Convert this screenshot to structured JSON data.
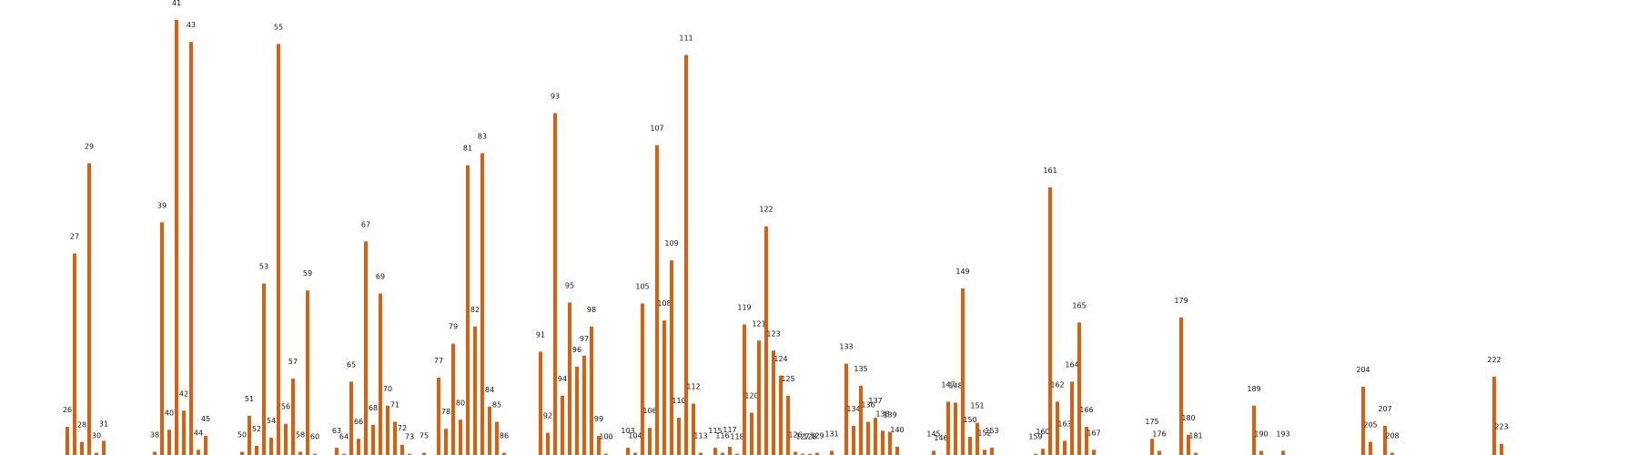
{
  "chart_data": {
    "type": "bar",
    "bar_color": "#d95f0e",
    "background": "#ffffff",
    "grid": false,
    "axes_visible": false,
    "title": "",
    "xlabel": "",
    "ylabel": "",
    "ylim": [
      0,
      43.5
    ],
    "xlim": [
      25,
      224
    ],
    "points": [
      {
        "x": 26,
        "y": 3.0,
        "label": "26"
      },
      {
        "x": 27,
        "y": 20.3,
        "label": "27"
      },
      {
        "x": 28,
        "y": 1.5,
        "label": "28"
      },
      {
        "x": 29,
        "y": 29.3,
        "label": "29"
      },
      {
        "x": 30,
        "y": 0.4,
        "label": "30"
      },
      {
        "x": 31,
        "y": 1.6,
        "label": "31"
      },
      {
        "x": 38,
        "y": 0.5,
        "label": "38"
      },
      {
        "x": 39,
        "y": 23.4,
        "label": "39"
      },
      {
        "x": 40,
        "y": 2.7,
        "label": "40"
      },
      {
        "x": 41,
        "y": 43.6,
        "label": "41"
      },
      {
        "x": 42,
        "y": 4.6,
        "label": "42"
      },
      {
        "x": 43,
        "y": 41.4,
        "label": "43"
      },
      {
        "x": 44,
        "y": 0.7,
        "label": "44"
      },
      {
        "x": 45,
        "y": 2.1,
        "label": "45"
      },
      {
        "x": 50,
        "y": 0.5,
        "label": "50"
      },
      {
        "x": 51,
        "y": 4.1,
        "label": "51"
      },
      {
        "x": 52,
        "y": 1.1,
        "label": "52"
      },
      {
        "x": 53,
        "y": 17.3,
        "label": "53"
      },
      {
        "x": 54,
        "y": 1.9,
        "label": "54"
      },
      {
        "x": 55,
        "y": 41.2,
        "label": "55"
      },
      {
        "x": 56,
        "y": 3.3,
        "label": "56"
      },
      {
        "x": 57,
        "y": 7.8,
        "label": "57"
      },
      {
        "x": 58,
        "y": 0.5,
        "label": "58"
      },
      {
        "x": 59,
        "y": 16.6,
        "label": "59"
      },
      {
        "x": 60,
        "y": 0.3,
        "label": "60"
      },
      {
        "x": 63,
        "y": 0.9,
        "label": "63"
      },
      {
        "x": 64,
        "y": 0.3,
        "label": "64"
      },
      {
        "x": 65,
        "y": 7.5,
        "label": "65"
      },
      {
        "x": 66,
        "y": 1.8,
        "label": "66"
      },
      {
        "x": 67,
        "y": 21.5,
        "label": "67"
      },
      {
        "x": 68,
        "y": 3.2,
        "label": "68"
      },
      {
        "x": 69,
        "y": 16.3,
        "label": "69"
      },
      {
        "x": 70,
        "y": 5.1,
        "label": "70"
      },
      {
        "x": 71,
        "y": 3.5,
        "label": "71"
      },
      {
        "x": 72,
        "y": 1.2,
        "label": "72"
      },
      {
        "x": 73,
        "y": 0.3,
        "label": "73"
      },
      {
        "x": 75,
        "y": 0.4,
        "label": "75"
      },
      {
        "x": 77,
        "y": 7.9,
        "label": "77"
      },
      {
        "x": 78,
        "y": 2.8,
        "label": "78"
      },
      {
        "x": 79,
        "y": 11.3,
        "label": "79"
      },
      {
        "x": 80,
        "y": 3.7,
        "label": "80"
      },
      {
        "x": 81,
        "y": 29.1,
        "label": "81"
      },
      {
        "x": 82,
        "y": 13.0,
        "label": "82"
      },
      {
        "x": 83,
        "y": 30.3,
        "label": "83"
      },
      {
        "x": 84,
        "y": 5.0,
        "label": "84"
      },
      {
        "x": 85,
        "y": 3.5,
        "label": "85"
      },
      {
        "x": 86,
        "y": 0.4,
        "label": "86"
      },
      {
        "x": 91,
        "y": 10.5,
        "label": "91"
      },
      {
        "x": 92,
        "y": 2.4,
        "label": "92"
      },
      {
        "x": 93,
        "y": 34.3,
        "label": "93"
      },
      {
        "x": 94,
        "y": 6.1,
        "label": "94"
      },
      {
        "x": 95,
        "y": 15.4,
        "label": "95"
      },
      {
        "x": 96,
        "y": 9.0,
        "label": "96"
      },
      {
        "x": 97,
        "y": 10.1,
        "label": "97"
      },
      {
        "x": 98,
        "y": 13.0,
        "label": "98"
      },
      {
        "x": 99,
        "y": 2.1,
        "label": "99"
      },
      {
        "x": 100,
        "y": 0.3,
        "label": "100"
      },
      {
        "x": 103,
        "y": 0.9,
        "label": "103"
      },
      {
        "x": 104,
        "y": 0.4,
        "label": "104"
      },
      {
        "x": 105,
        "y": 15.3,
        "label": "105"
      },
      {
        "x": 106,
        "y": 2.9,
        "label": "106"
      },
      {
        "x": 107,
        "y": 31.1,
        "label": "107"
      },
      {
        "x": 108,
        "y": 13.6,
        "label": "108"
      },
      {
        "x": 109,
        "y": 19.6,
        "label": "109"
      },
      {
        "x": 110,
        "y": 3.9,
        "label": "110"
      },
      {
        "x": 111,
        "y": 40.1,
        "label": "111"
      },
      {
        "x": 112,
        "y": 5.3,
        "label": "112"
      },
      {
        "x": 113,
        "y": 0.4,
        "label": "113"
      },
      {
        "x": 115,
        "y": 0.9,
        "label": "115"
      },
      {
        "x": 116,
        "y": 0.4,
        "label": "116"
      },
      {
        "x": 117,
        "y": 1.0,
        "label": "117"
      },
      {
        "x": 118,
        "y": 0.3,
        "label": "118"
      },
      {
        "x": 119,
        "y": 13.2,
        "label": "119"
      },
      {
        "x": 120,
        "y": 4.4,
        "label": "120"
      },
      {
        "x": 121,
        "y": 11.6,
        "label": "121"
      },
      {
        "x": 122,
        "y": 23.0,
        "label": "122"
      },
      {
        "x": 123,
        "y": 10.6,
        "label": "123"
      },
      {
        "x": 124,
        "y": 8.1,
        "label": "124"
      },
      {
        "x": 125,
        "y": 6.1,
        "label": "125"
      },
      {
        "x": 126,
        "y": 0.5,
        "label": "126"
      },
      {
        "x": 127,
        "y": 0.3,
        "label": "127"
      },
      {
        "x": 128,
        "y": 0.3,
        "label": "128"
      },
      {
        "x": 129,
        "y": 0.4,
        "label": "129"
      },
      {
        "x": 131,
        "y": 0.6,
        "label": "131"
      },
      {
        "x": 133,
        "y": 9.3,
        "label": "133"
      },
      {
        "x": 134,
        "y": 3.1,
        "label": "134"
      },
      {
        "x": 135,
        "y": 7.1,
        "label": "135"
      },
      {
        "x": 136,
        "y": 3.5,
        "label": "136"
      },
      {
        "x": 137,
        "y": 3.9,
        "label": "137"
      },
      {
        "x": 138,
        "y": 2.6,
        "label": "138"
      },
      {
        "x": 139,
        "y": 2.5,
        "label": "139"
      },
      {
        "x": 140,
        "y": 1.0,
        "label": "140"
      },
      {
        "x": 145,
        "y": 0.6,
        "label": "145"
      },
      {
        "x": 146,
        "y": 0.2,
        "label": "146"
      },
      {
        "x": 147,
        "y": 5.5,
        "label": "147"
      },
      {
        "x": 148,
        "y": 5.4,
        "label": "148"
      },
      {
        "x": 149,
        "y": 16.8,
        "label": "149"
      },
      {
        "x": 150,
        "y": 2.0,
        "label": "150"
      },
      {
        "x": 151,
        "y": 3.4,
        "label": "151"
      },
      {
        "x": 152,
        "y": 0.7,
        "label": "152"
      },
      {
        "x": 153,
        "y": 0.9,
        "label": "153"
      },
      {
        "x": 159,
        "y": 0.3,
        "label": "159"
      },
      {
        "x": 160,
        "y": 0.8,
        "label": "160"
      },
      {
        "x": 161,
        "y": 26.9,
        "label": "161"
      },
      {
        "x": 162,
        "y": 5.5,
        "label": "162"
      },
      {
        "x": 163,
        "y": 1.6,
        "label": "163"
      },
      {
        "x": 164,
        "y": 7.5,
        "label": "164"
      },
      {
        "x": 165,
        "y": 13.4,
        "label": "165"
      },
      {
        "x": 166,
        "y": 3.0,
        "label": "166"
      },
      {
        "x": 167,
        "y": 0.7,
        "label": "167"
      },
      {
        "x": 175,
        "y": 1.8,
        "label": "175"
      },
      {
        "x": 176,
        "y": 0.6,
        "label": "176"
      },
      {
        "x": 179,
        "y": 13.9,
        "label": "179"
      },
      {
        "x": 180,
        "y": 2.2,
        "label": "180"
      },
      {
        "x": 181,
        "y": 0.4,
        "label": "181"
      },
      {
        "x": 189,
        "y": 5.1,
        "label": "189"
      },
      {
        "x": 190,
        "y": 0.6,
        "label": "190"
      },
      {
        "x": 193,
        "y": 0.6,
        "label": "193"
      },
      {
        "x": 204,
        "y": 7.0,
        "label": "204"
      },
      {
        "x": 205,
        "y": 1.5,
        "label": "205"
      },
      {
        "x": 207,
        "y": 3.1,
        "label": "207"
      },
      {
        "x": 208,
        "y": 0.4,
        "label": "208"
      },
      {
        "x": 222,
        "y": 8.0,
        "label": "222"
      },
      {
        "x": 223,
        "y": 1.3,
        "label": "223"
      }
    ]
  }
}
